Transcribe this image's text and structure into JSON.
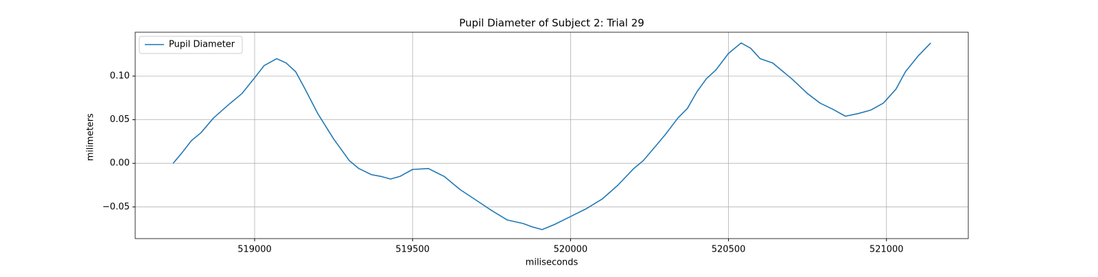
{
  "chart_data": {
    "type": "line",
    "title": "Pupil Diameter of Subject 2: Trial 29",
    "xlabel": "miliseconds",
    "ylabel": "milimeters",
    "x": [
      518742,
      518770,
      518800,
      518830,
      518870,
      518920,
      518960,
      519000,
      519030,
      519070,
      519100,
      519130,
      519160,
      519200,
      519250,
      519300,
      519330,
      519370,
      519400,
      519430,
      519460,
      519500,
      519550,
      519600,
      519650,
      519700,
      519750,
      519800,
      519850,
      519880,
      519910,
      519950,
      520000,
      520050,
      520100,
      520150,
      520200,
      520230,
      520270,
      520300,
      520340,
      520370,
      520400,
      520430,
      520460,
      520500,
      520540,
      520570,
      520600,
      520640,
      520700,
      520750,
      520790,
      520830,
      520870,
      520910,
      520950,
      520990,
      521030,
      521060,
      521100,
      521140
    ],
    "series": [
      {
        "name": "Pupil Diameter",
        "color": "#1f77b4",
        "values": [
          0.0,
          0.012,
          0.026,
          0.035,
          0.052,
          0.068,
          0.08,
          0.098,
          0.112,
          0.12,
          0.115,
          0.105,
          0.085,
          0.057,
          0.028,
          0.003,
          -0.006,
          -0.013,
          -0.015,
          -0.018,
          -0.015,
          -0.007,
          -0.006,
          -0.015,
          -0.03,
          -0.042,
          -0.054,
          -0.065,
          -0.069,
          -0.073,
          -0.076,
          -0.07,
          -0.061,
          -0.052,
          -0.041,
          -0.025,
          -0.006,
          0.003,
          0.02,
          0.033,
          0.052,
          0.063,
          0.082,
          0.097,
          0.107,
          0.126,
          0.138,
          0.132,
          0.12,
          0.115,
          0.097,
          0.08,
          0.069,
          0.062,
          0.054,
          0.057,
          0.061,
          0.069,
          0.085,
          0.105,
          0.123,
          0.138
        ]
      }
    ],
    "xlim": [
      518622,
      521259
    ],
    "xticks": [
      519000,
      519500,
      520000,
      520500,
      521000
    ],
    "ylim": [
      -0.0863,
      0.1503
    ],
    "yticks": [
      {
        "value": -0.05,
        "label": "−0.05"
      },
      {
        "value": 0,
        "label": "0.00"
      },
      0.05,
      {
        "value": 0.1,
        "label": "0.10"
      }
    ],
    "grid": true,
    "legend": "upper left"
  }
}
